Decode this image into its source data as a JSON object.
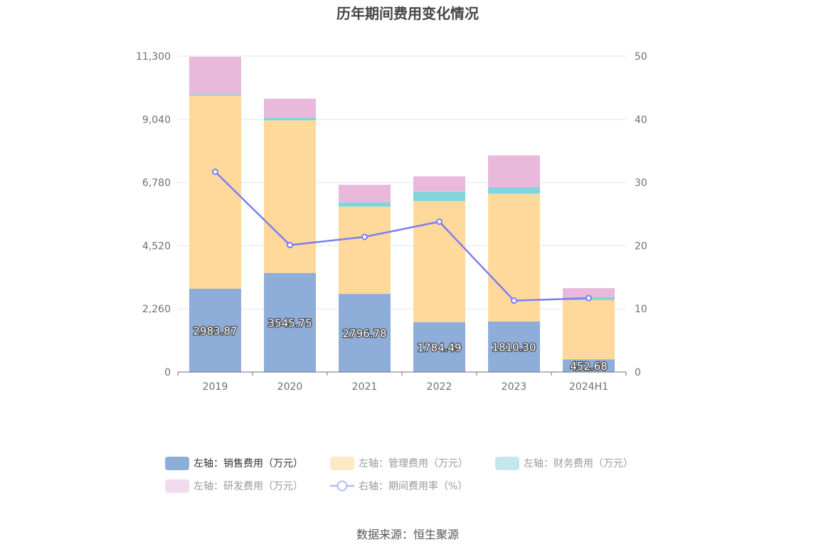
{
  "chart_data": {
    "type": "bar",
    "title": "历年期间费用变化情况",
    "categories": [
      "2019",
      "2020",
      "2021",
      "2022",
      "2023",
      "2024H1"
    ],
    "y_left": {
      "ticks": [
        "0",
        "2,260",
        "4,520",
        "6,780",
        "9,040",
        "11,300"
      ],
      "ylim": [
        0,
        11300
      ]
    },
    "y_right": {
      "ticks": [
        "0",
        "10",
        "20",
        "30",
        "40",
        "50"
      ],
      "ylim": [
        0,
        50
      ]
    },
    "series": [
      {
        "name": "左轴：销售费用（万元）",
        "type": "bar",
        "color": "#8fadd9",
        "values": [
          2983.87,
          3545.75,
          2796.78,
          1784.49,
          1810.3,
          452.68
        ],
        "labels": [
          "2983.87",
          "3545.75",
          "2796.78",
          "1784.49",
          "1810.30",
          "452.68"
        ]
      },
      {
        "name": "左轴：管理费用（万元）",
        "type": "bar",
        "color": "#ffd99b",
        "values": [
          6900,
          5460,
          3120,
          4330,
          4570,
          2120
        ]
      },
      {
        "name": "左轴：财务费用（万元）",
        "type": "bar",
        "color": "#7fd6da",
        "values": [
          50,
          100,
          150,
          330,
          240,
          100
        ]
      },
      {
        "name": "左轴：研发费用（万元）",
        "type": "bar",
        "color": "#e8b9da",
        "values": [
          1346,
          674,
          633,
          556,
          1130,
          328
        ]
      },
      {
        "name": "右轴：期间费用率（%）",
        "type": "line",
        "color": "#7b7ff0",
        "values": [
          31.7,
          20.1,
          21.4,
          23.8,
          11.3,
          11.7
        ]
      }
    ],
    "legend_position": "bottom",
    "grid": true
  },
  "source": "数据来源：恒生聚源"
}
